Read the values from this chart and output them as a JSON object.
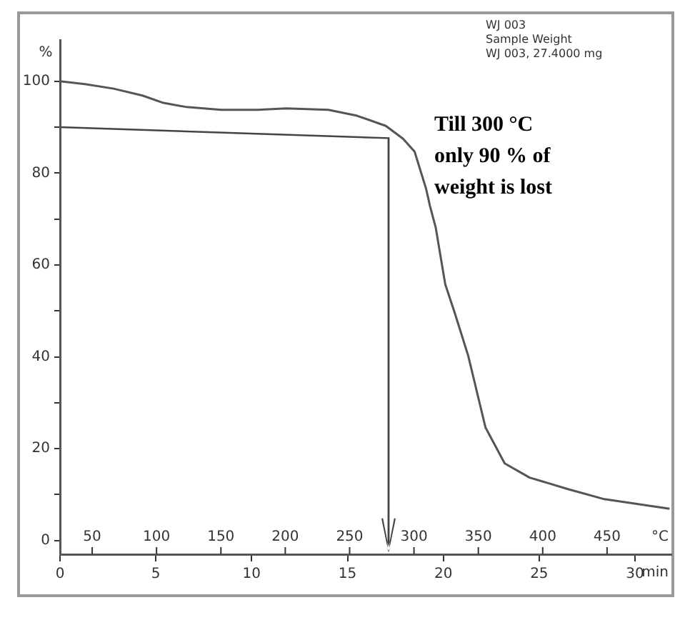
{
  "chart_data": {
    "type": "line",
    "ylabel": "%",
    "xlabel": "min",
    "x2label": "°C",
    "xlim": [
      0,
      31.9
    ],
    "xticks": [
      0,
      5,
      10,
      15,
      20,
      25,
      30
    ],
    "x2lim": [
      25,
      500
    ],
    "x2ticks": [
      50,
      100,
      150,
      200,
      250,
      300,
      350,
      400,
      450
    ],
    "ylim": [
      -3,
      109
    ],
    "yticks": [
      0,
      {
        "value": 10,
        "label": null
      },
      20,
      {
        "value": 30,
        "label": null
      },
      40,
      {
        "value": 50,
        "label": null
      },
      60,
      {
        "value": 70,
        "label": null
      },
      80,
      {
        "value": 90,
        "label": null
      },
      100
    ],
    "grid": false,
    "legend": false,
    "marker": "none",
    "line_style": "solid",
    "series": [
      {
        "color": "#555555",
        "x": [
          0,
          1.3,
          2.8,
          4.3,
          5.4,
          6.6,
          8.4,
          10.3,
          11.8,
          14,
          15.5,
          17,
          17.9,
          18.5,
          19.1,
          19.3,
          19.6,
          20.1,
          20.6,
          21.3,
          22.2,
          23.2,
          24.5,
          26.5,
          28.4,
          31.8
        ],
        "values": [
          100,
          99.4,
          98.4,
          96.9,
          95.3,
          94.4,
          93.8,
          93.8,
          94.1,
          93.8,
          92.5,
          90.3,
          87.5,
          84.7,
          76.6,
          72.9,
          68.2,
          55.8,
          49.5,
          40.2,
          24.6,
          16.8,
          13.7,
          11.2,
          9.0,
          6.9
        ]
      }
    ],
    "annotations": [
      "WJ 003",
      "Sample Weight",
      "WJ 003, 27.4000 mg",
      "Till 300 °C only 90 % of weight is lost"
    ]
  }
}
